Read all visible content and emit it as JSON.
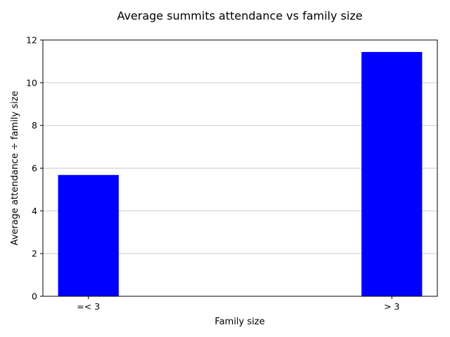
{
  "chart_data": {
    "type": "bar",
    "title": "Average summits attendance vs family size",
    "xlabel": "Family size",
    "ylabel": "Average attendance ÷ family size",
    "categories": [
      "=< 3",
      "> 3"
    ],
    "values": [
      5.68,
      11.44
    ],
    "ylim": [
      0,
      12
    ],
    "yticks": [
      0,
      2,
      4,
      6,
      8,
      10,
      12
    ],
    "ytick_labels": [
      "0",
      "2",
      "4",
      "6",
      "8",
      "10",
      "12"
    ],
    "grid": "horizontal",
    "legend": "none",
    "bar_color": "#0000ff"
  }
}
